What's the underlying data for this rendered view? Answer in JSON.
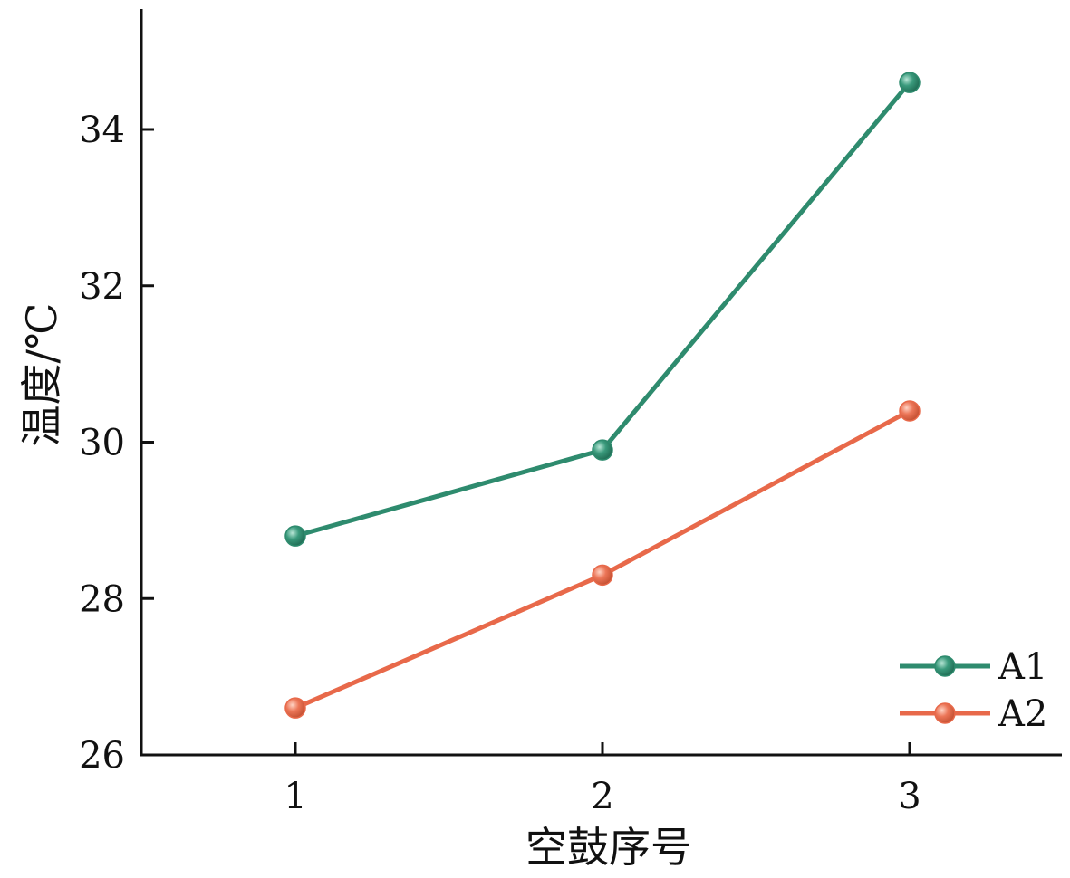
{
  "chart_data": {
    "type": "line",
    "x": [
      1,
      2,
      3
    ],
    "x_tick_labels": [
      "1",
      "2",
      "3"
    ],
    "y_tick_values": [
      26,
      28,
      30,
      32,
      34
    ],
    "y_tick_labels": [
      "26",
      "28",
      "30",
      "32",
      "34"
    ],
    "xlabel": "空鼓序号",
    "ylabel": "温度/℃",
    "xlim": [
      0.5,
      3.5
    ],
    "ylim": [
      26,
      35.5
    ],
    "grid": false,
    "legend_position": "bottom-right",
    "series": [
      {
        "name": "A1",
        "color": "#2e8b6e",
        "values": [
          28.8,
          29.9,
          34.6
        ]
      },
      {
        "name": "A2",
        "color": "#e8694a",
        "values": [
          26.6,
          28.3,
          30.4
        ]
      }
    ]
  }
}
